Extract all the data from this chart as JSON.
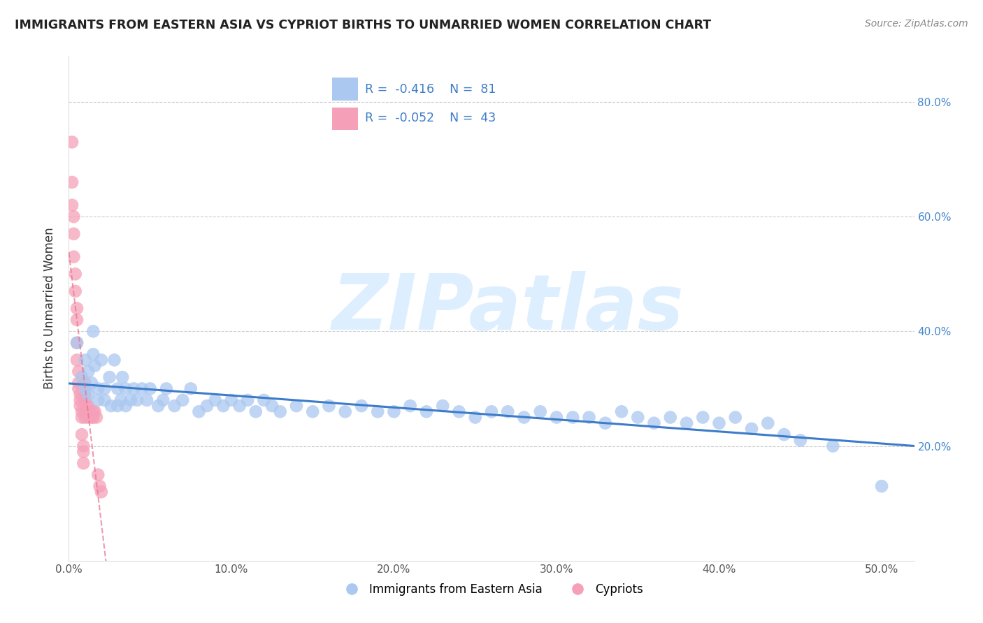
{
  "title": "IMMIGRANTS FROM EASTERN ASIA VS CYPRIOT BIRTHS TO UNMARRIED WOMEN CORRELATION CHART",
  "source": "Source: ZipAtlas.com",
  "ylabel": "Births to Unmarried Women",
  "blue_R": -0.416,
  "blue_N": 81,
  "pink_R": -0.052,
  "pink_N": 43,
  "blue_color": "#aac8f0",
  "pink_color": "#f5a0b8",
  "blue_line_color": "#3d7cc9",
  "pink_line_color": "#e87090",
  "legend_text_color": "#3d7cc9",
  "watermark": "ZIPatlas",
  "watermark_color": "#ddeeff",
  "legend_label_blue": "Immigrants from Eastern Asia",
  "legend_label_pink": "Cypriots",
  "xlim": [
    0.0,
    0.52
  ],
  "ylim": [
    0.0,
    0.88
  ],
  "blue_scatter_x": [
    0.005,
    0.008,
    0.01,
    0.01,
    0.012,
    0.012,
    0.014,
    0.015,
    0.015,
    0.016,
    0.018,
    0.018,
    0.02,
    0.022,
    0.022,
    0.025,
    0.026,
    0.028,
    0.03,
    0.03,
    0.032,
    0.033,
    0.035,
    0.035,
    0.038,
    0.04,
    0.042,
    0.045,
    0.048,
    0.05,
    0.055,
    0.058,
    0.06,
    0.065,
    0.07,
    0.075,
    0.08,
    0.085,
    0.09,
    0.095,
    0.1,
    0.105,
    0.11,
    0.115,
    0.12,
    0.125,
    0.13,
    0.14,
    0.15,
    0.16,
    0.17,
    0.18,
    0.19,
    0.2,
    0.21,
    0.22,
    0.23,
    0.24,
    0.25,
    0.26,
    0.27,
    0.28,
    0.29,
    0.3,
    0.31,
    0.32,
    0.33,
    0.34,
    0.35,
    0.36,
    0.37,
    0.38,
    0.39,
    0.4,
    0.41,
    0.42,
    0.43,
    0.44,
    0.45,
    0.47,
    0.5
  ],
  "blue_scatter_y": [
    0.38,
    0.32,
    0.3,
    0.35,
    0.29,
    0.33,
    0.31,
    0.4,
    0.36,
    0.34,
    0.3,
    0.28,
    0.35,
    0.3,
    0.28,
    0.32,
    0.27,
    0.35,
    0.3,
    0.27,
    0.28,
    0.32,
    0.3,
    0.27,
    0.28,
    0.3,
    0.28,
    0.3,
    0.28,
    0.3,
    0.27,
    0.28,
    0.3,
    0.27,
    0.28,
    0.3,
    0.26,
    0.27,
    0.28,
    0.27,
    0.28,
    0.27,
    0.28,
    0.26,
    0.28,
    0.27,
    0.26,
    0.27,
    0.26,
    0.27,
    0.26,
    0.27,
    0.26,
    0.26,
    0.27,
    0.26,
    0.27,
    0.26,
    0.25,
    0.26,
    0.26,
    0.25,
    0.26,
    0.25,
    0.25,
    0.25,
    0.24,
    0.26,
    0.25,
    0.24,
    0.25,
    0.24,
    0.25,
    0.24,
    0.25,
    0.23,
    0.24,
    0.22,
    0.21,
    0.2,
    0.13
  ],
  "pink_scatter_x": [
    0.002,
    0.002,
    0.002,
    0.003,
    0.003,
    0.003,
    0.004,
    0.004,
    0.005,
    0.005,
    0.005,
    0.005,
    0.006,
    0.006,
    0.006,
    0.007,
    0.007,
    0.007,
    0.008,
    0.008,
    0.008,
    0.009,
    0.009,
    0.009,
    0.01,
    0.01,
    0.01,
    0.01,
    0.01,
    0.011,
    0.011,
    0.012,
    0.012,
    0.012,
    0.013,
    0.014,
    0.015,
    0.015,
    0.016,
    0.017,
    0.018,
    0.019,
    0.02
  ],
  "pink_scatter_y": [
    0.73,
    0.66,
    0.62,
    0.6,
    0.57,
    0.53,
    0.5,
    0.47,
    0.44,
    0.42,
    0.38,
    0.35,
    0.33,
    0.31,
    0.3,
    0.29,
    0.28,
    0.27,
    0.26,
    0.25,
    0.22,
    0.2,
    0.19,
    0.17,
    0.31,
    0.29,
    0.28,
    0.26,
    0.25,
    0.27,
    0.26,
    0.27,
    0.26,
    0.25,
    0.26,
    0.25,
    0.26,
    0.25,
    0.26,
    0.25,
    0.15,
    0.13,
    0.12
  ]
}
